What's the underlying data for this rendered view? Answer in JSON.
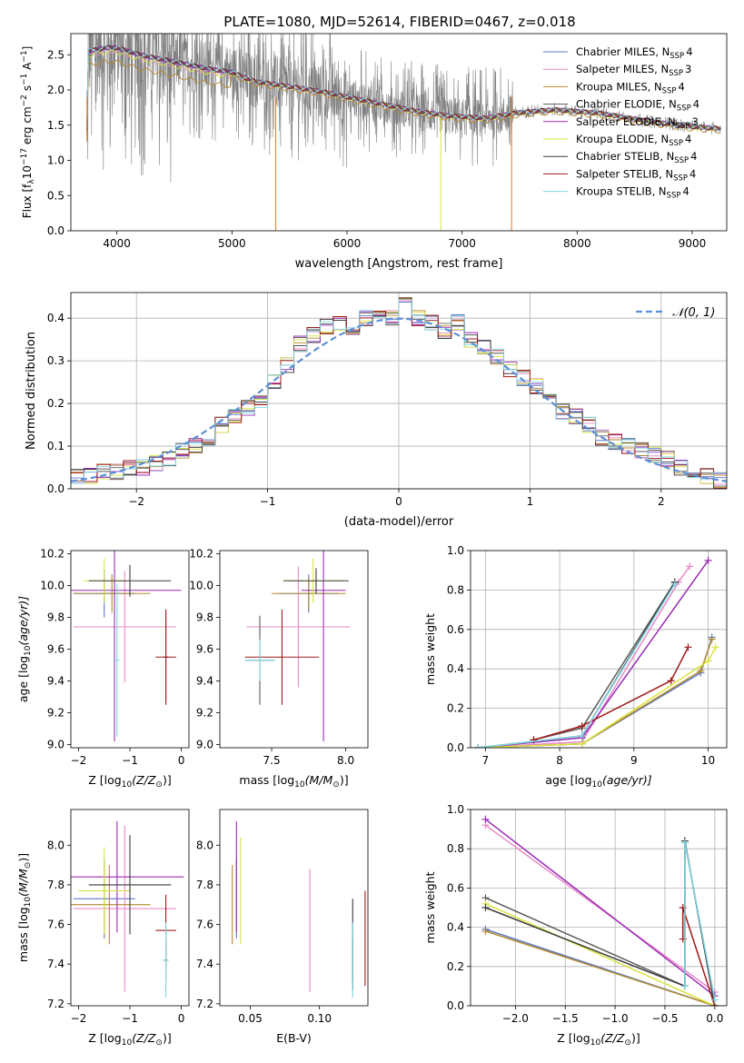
{
  "title": "PLATE=1080, MJD=52614, FIBERID=0467, z=0.018",
  "colors": {
    "Chabrier MILES": "#5b79c7",
    "Salpeter MILES": "#e98ac9",
    "Kroupa MILES": "#b48a2e",
    "Chabrier ELODIE": "#5b5b5b",
    "Salpeter ELODIE": "#9a2cb6",
    "Kroupa ELODIE": "#d9e33e",
    "Chabrier STELIB": "#3b3b3b",
    "Salpeter STELIB": "#a01818",
    "Kroupa STELIB": "#7fd7e1",
    "data": "#808080",
    "gauss": "#5b8fd6"
  },
  "chart_data": [
    {
      "id": "spectrum",
      "type": "line",
      "title": "PLATE=1080, MJD=52614, FIBERID=0467, z=0.018",
      "xlabel": "wavelength [Angstrom, rest frame]",
      "ylabel": "Flux [f",
      "ylabel_sub": "λ",
      "ylabel_rest": "10",
      "ylabel_exp1": "−17",
      "ylabel_mid": " erg cm",
      "ylabel_exp2": "−2",
      "ylabel_s": " s",
      "ylabel_exp3": "−1",
      "ylabel_a": " A",
      "ylabel_exp4": "−1",
      "ylabel_end": "]",
      "xlim": [
        3600,
        9300
      ],
      "ylim": [
        0,
        2.8
      ],
      "xticks": [
        "4000",
        "5000",
        "6000",
        "7000",
        "8000",
        "9000"
      ],
      "yticks": [
        "0.0",
        "0.5",
        "1.0",
        "1.5",
        "2.0",
        "2.5"
      ],
      "legend_position": "top-right",
      "legend": [
        {
          "name": "Chabrier MILES",
          "nssp": "4"
        },
        {
          "name": "Salpeter MILES",
          "nssp": "3"
        },
        {
          "name": "Kroupa MILES",
          "nssp": "4"
        },
        {
          "name": "Chabrier ELODIE",
          "nssp": "4"
        },
        {
          "name": "Salpeter ELODIE",
          "nssp": "3"
        },
        {
          "name": "Kroupa ELODIE",
          "nssp": "4"
        },
        {
          "name": "Chabrier STELIB",
          "nssp": "4"
        },
        {
          "name": "Salpeter STELIB",
          "nssp": "4"
        },
        {
          "name": "Kroupa STELIB",
          "nssp": "4"
        }
      ],
      "legend_label_suffix": ", N",
      "legend_label_sub": "SSP",
      "continuum": [
        [
          3750,
          2.55
        ],
        [
          3900,
          2.6
        ],
        [
          4000,
          2.6
        ],
        [
          4200,
          2.5
        ],
        [
          4500,
          2.4
        ],
        [
          4800,
          2.3
        ],
        [
          5000,
          2.25
        ],
        [
          5200,
          2.12
        ],
        [
          5500,
          2.05
        ],
        [
          5800,
          1.97
        ],
        [
          6000,
          1.9
        ],
        [
          6300,
          1.8
        ],
        [
          6600,
          1.7
        ],
        [
          6900,
          1.63
        ],
        [
          7200,
          1.6
        ],
        [
          7500,
          1.68
        ],
        [
          7800,
          1.72
        ],
        [
          8200,
          1.67
        ],
        [
          8600,
          1.56
        ],
        [
          9000,
          1.48
        ],
        [
          9250,
          1.45
        ]
      ]
    },
    {
      "id": "residuals",
      "type": "line",
      "xlabel": "(data-model)/error",
      "ylabel": "Normed distribution",
      "xlim": [
        -2.5,
        2.5
      ],
      "ylim": [
        0,
        0.46
      ],
      "xticks": [
        "−2",
        "−1",
        "0",
        "1",
        "2"
      ],
      "yticks": [
        "0.0",
        "0.1",
        "0.2",
        "0.3",
        "0.4"
      ],
      "grid": true,
      "legend_position": "top-right",
      "gauss_label": "𝒩(0, 1)",
      "bins": [
        -2.5,
        -2.4,
        -2.3,
        -2.2,
        -2.1,
        -2.0,
        -1.9,
        -1.8,
        -1.7,
        -1.6,
        -1.5,
        -1.4,
        -1.3,
        -1.2,
        -1.1,
        -1.0,
        -0.9,
        -0.8,
        -0.7,
        -0.6,
        -0.5,
        -0.4,
        -0.3,
        -0.2,
        -0.1,
        0.0,
        0.1,
        0.2,
        0.3,
        0.4,
        0.5,
        0.6,
        0.7,
        0.8,
        0.9,
        1.0,
        1.1,
        1.2,
        1.3,
        1.4,
        1.5,
        1.6,
        1.7,
        1.8,
        1.9,
        2.0,
        2.1,
        2.2,
        2.3,
        2.4,
        2.5
      ],
      "hist": [
        0.03,
        0.03,
        0.04,
        0.04,
        0.05,
        0.05,
        0.06,
        0.07,
        0.09,
        0.1,
        0.12,
        0.15,
        0.17,
        0.19,
        0.2,
        0.25,
        0.29,
        0.34,
        0.36,
        0.38,
        0.39,
        0.38,
        0.4,
        0.41,
        0.4,
        0.43,
        0.4,
        0.39,
        0.37,
        0.39,
        0.35,
        0.33,
        0.31,
        0.28,
        0.26,
        0.24,
        0.21,
        0.18,
        0.17,
        0.15,
        0.12,
        0.11,
        0.1,
        0.09,
        0.08,
        0.07,
        0.05,
        0.04,
        0.03,
        0.02
      ]
    },
    {
      "id": "age-vs-Z",
      "type": "scatter",
      "xlabel": "Z [log",
      "xlabel_sub": "10",
      "xlabel_rest": "(Z/Z",
      "xlabel_sub2": "⊙",
      "xlabel_end": ")]",
      "ylabel": "age  [log",
      "ylabel_sub": "10",
      "ylabel_rest": "(age/yr)]",
      "xlim": [
        -2.15,
        0.15
      ],
      "ylim": [
        8.98,
        10.22
      ],
      "xticks": [
        "−2",
        "−1",
        "0"
      ],
      "yticks": [
        "9.0",
        "9.2",
        "9.4",
        "9.6",
        "9.8",
        "10.0",
        "10.2"
      ],
      "errorbars": [
        {
          "model": "Chabrier MILES",
          "x": -1.5,
          "xerr": 0.6,
          "y": 9.95,
          "yerr": 0.15
        },
        {
          "model": "Salpeter MILES",
          "x": -1.1,
          "xerr": 1.0,
          "y": 9.74,
          "yerr": 0.35
        },
        {
          "model": "Kroupa MILES",
          "x": -1.35,
          "xerr": 0.75,
          "y": 9.95,
          "yerr": 0.12
        },
        {
          "model": "Chabrier ELODIE",
          "x": -0.3,
          "xerr": 0.05,
          "y": 9.55,
          "yerr": 0.28
        },
        {
          "model": "Salpeter ELODIE",
          "x": -1.3,
          "xerr": 1.3,
          "y": 9.97,
          "yerr": 0.95
        },
        {
          "model": "Kroupa ELODIE",
          "x": -1.5,
          "xerr": 0.4,
          "y": 10.03,
          "yerr": 0.14
        },
        {
          "model": "Chabrier STELIB",
          "x": -1.0,
          "xerr": 0.8,
          "y": 10.03,
          "yerr": 0.1
        },
        {
          "model": "Salpeter STELIB",
          "x": -0.3,
          "xerr": 0.2,
          "y": 9.55,
          "yerr": 0.3
        },
        {
          "model": "Kroupa STELIB",
          "x": -1.25,
          "xerr": 0.05,
          "y": 9.53,
          "yerr": 0.48
        }
      ]
    },
    {
      "id": "age-vs-mass",
      "type": "scatter",
      "xlabel": "mass [log",
      "xlabel_sub": "10",
      "xlabel_rest": "(M/M",
      "xlabel_sub2": "⊙",
      "xlabel_end": ")]",
      "xlim": [
        7.15,
        8.15
      ],
      "ylim": [
        8.98,
        10.22
      ],
      "xticks": [
        "7.5",
        "8.0"
      ],
      "yticks": [
        "9.0",
        "9.2",
        "9.4",
        "9.6",
        "9.8",
        "10.0",
        "10.2"
      ],
      "errorbars": [
        {
          "model": "Chabrier MILES",
          "x": 7.75,
          "xerr": 0.2,
          "y": 9.95,
          "yerr": 0.12
        },
        {
          "model": "Salpeter MILES",
          "x": 7.68,
          "xerr": 0.35,
          "y": 9.74,
          "yerr": 0.38
        },
        {
          "model": "Kroupa MILES",
          "x": 7.75,
          "xerr": 0.25,
          "y": 9.95,
          "yerr": 0.1
        },
        {
          "model": "Chabrier ELODIE",
          "x": 7.42,
          "xerr": 0.1,
          "y": 9.53,
          "yerr": 0.28
        },
        {
          "model": "Salpeter ELODIE",
          "x": 7.85,
          "xerr": 0.15,
          "y": 9.97,
          "yerr": 0.95
        },
        {
          "model": "Kroupa ELODIE",
          "x": 7.78,
          "xerr": 0.2,
          "y": 10.03,
          "yerr": 0.14
        },
        {
          "model": "Chabrier STELIB",
          "x": 7.8,
          "xerr": 0.22,
          "y": 10.03,
          "yerr": 0.08
        },
        {
          "model": "Salpeter STELIB",
          "x": 7.57,
          "xerr": 0.25,
          "y": 9.55,
          "yerr": 0.3
        },
        {
          "model": "Kroupa STELIB",
          "x": 7.42,
          "xerr": 0.1,
          "y": 9.53,
          "yerr": 0.13
        }
      ]
    },
    {
      "id": "massweight-vs-age",
      "type": "line",
      "xlabel": "age  [log",
      "xlabel_sub": "10",
      "xlabel_rest": "(age/yr)]",
      "ylabel": "mass weight",
      "xlim": [
        6.8,
        10.25
      ],
      "ylim": [
        0,
        1.0
      ],
      "xticks": [
        "7",
        "8",
        "9",
        "10"
      ],
      "yticks": [
        "0.0",
        "0.2",
        "0.4",
        "0.6",
        "0.8",
        "1.0"
      ],
      "grid": true,
      "series": [
        {
          "model": "Chabrier MILES",
          "x": [
            6.9,
            8.3,
            9.9,
            10.05
          ],
          "y": [
            0.0,
            0.02,
            0.38,
            0.56
          ]
        },
        {
          "model": "Salpeter MILES",
          "x": [
            6.9,
            8.3,
            9.6,
            9.75
          ],
          "y": [
            0.0,
            0.03,
            0.84,
            0.92
          ]
        },
        {
          "model": "Kroupa MILES",
          "x": [
            6.9,
            8.3,
            9.9,
            10.05
          ],
          "y": [
            0.0,
            0.02,
            0.39,
            0.55
          ]
        },
        {
          "model": "Chabrier ELODIE",
          "x": [
            7.65,
            8.3,
            9.55
          ],
          "y": [
            0.04,
            0.1,
            0.84
          ]
        },
        {
          "model": "Salpeter ELODIE",
          "x": [
            6.9,
            8.3,
            10.0
          ],
          "y": [
            0.0,
            0.05,
            0.95
          ]
        },
        {
          "model": "Kroupa ELODIE",
          "x": [
            6.9,
            8.3,
            10.0,
            10.1
          ],
          "y": [
            0.0,
            0.02,
            0.44,
            0.51
          ]
        },
        {
          "model": "Chabrier STELIB",
          "x": [
            6.9,
            8.3,
            9.55
          ],
          "y": [
            0.0,
            0.06,
            0.84
          ]
        },
        {
          "model": "Salpeter STELIB",
          "x": [
            7.65,
            8.3,
            9.5,
            9.73
          ],
          "y": [
            0.04,
            0.11,
            0.34,
            0.51
          ]
        },
        {
          "model": "Kroupa STELIB",
          "x": [
            6.9,
            8.3,
            9.55
          ],
          "y": [
            0.0,
            0.06,
            0.83
          ]
        }
      ]
    },
    {
      "id": "mass-vs-Z",
      "type": "scatter",
      "xlabel": "Z [log",
      "xlabel_sub": "10",
      "xlabel_rest": "(Z/Z",
      "xlabel_sub2": "⊙",
      "xlabel_end": ")]",
      "ylabel": "mass [log",
      "ylabel_sub": "10",
      "ylabel_rest": "(M/M",
      "ylabel_sub2": "⊙",
      "ylabel_end": ")]",
      "xlim": [
        -2.15,
        0.15
      ],
      "ylim": [
        7.19,
        8.18
      ],
      "xticks": [
        "−2",
        "−1",
        "0"
      ],
      "yticks": [
        "7.2",
        "7.4",
        "7.6",
        "7.8",
        "8.0"
      ],
      "errorbars": [
        {
          "model": "Chabrier MILES",
          "x": -1.5,
          "xerr": 0.6,
          "y": 7.73,
          "yerr": 0.2
        },
        {
          "model": "Salpeter MILES",
          "x": -1.1,
          "xerr": 1.0,
          "y": 7.68,
          "yerr": 0.42
        },
        {
          "model": "Kroupa MILES",
          "x": -1.4,
          "xerr": 0.8,
          "y": 7.7,
          "yerr": 0.2
        },
        {
          "model": "Chabrier ELODIE",
          "x": -0.3,
          "xerr": 0.05,
          "y": 7.42,
          "yerr": 0.1
        },
        {
          "model": "Salpeter ELODIE",
          "x": -1.25,
          "xerr": 1.3,
          "y": 7.84,
          "yerr": 0.28
        },
        {
          "model": "Kroupa ELODIE",
          "x": -1.5,
          "xerr": 0.5,
          "y": 7.77,
          "yerr": 0.22
        },
        {
          "model": "Chabrier STELIB",
          "x": -1.0,
          "xerr": 0.8,
          "y": 7.8,
          "yerr": 0.25
        },
        {
          "model": "Salpeter STELIB",
          "x": -0.3,
          "xerr": 0.2,
          "y": 7.57,
          "yerr": 0.18
        },
        {
          "model": "Kroupa STELIB",
          "x": -0.3,
          "xerr": 0.05,
          "y": 7.42,
          "yerr": 0.19
        }
      ]
    },
    {
      "id": "mass-vs-EBV",
      "type": "scatter",
      "xlabel": "E(B-V)",
      "xlim": [
        0.028,
        0.135
      ],
      "ylim": [
        7.19,
        8.18
      ],
      "xticks": [
        "0.05",
        "0.10"
      ],
      "yticks": [
        "7.2",
        "7.4",
        "7.6",
        "7.8",
        "8.0"
      ],
      "errorbars": [
        {
          "model": "Chabrier MILES",
          "x": 0.04,
          "xerr": 0.0,
          "y": 7.73,
          "yerr": 0.2
        },
        {
          "model": "Salpeter MILES",
          "x": 0.093,
          "xerr": 0.0,
          "y": 7.57,
          "yerr": 0.31
        },
        {
          "model": "Kroupa MILES",
          "x": 0.037,
          "xerr": 0.0,
          "y": 7.7,
          "yerr": 0.2
        },
        {
          "model": "Chabrier ELODIE",
          "x": 0.124,
          "xerr": 0.0,
          "y": 7.42,
          "yerr": 0.1
        },
        {
          "model": "Salpeter ELODIE",
          "x": 0.04,
          "xerr": 0.0,
          "y": 7.84,
          "yerr": 0.28
        },
        {
          "model": "Kroupa ELODIE",
          "x": 0.043,
          "xerr": 0.0,
          "y": 7.77,
          "yerr": 0.27
        },
        {
          "model": "Chabrier STELIB",
          "x": 0.124,
          "xerr": 0.0,
          "y": 7.5,
          "yerr": 0.23
        },
        {
          "model": "Salpeter STELIB",
          "x": 0.133,
          "xerr": 0.0,
          "y": 7.53,
          "yerr": 0.24
        },
        {
          "model": "Kroupa STELIB",
          "x": 0.124,
          "xerr": 0.0,
          "y": 7.42,
          "yerr": 0.19
        }
      ]
    },
    {
      "id": "massweight-vs-Z",
      "type": "line",
      "xlabel": "Z [log",
      "xlabel_sub": "10",
      "xlabel_rest": "(Z/Z",
      "xlabel_sub2": "⊙",
      "xlabel_end": ")]",
      "ylabel": "mass weight",
      "xlim": [
        -2.45,
        0.12
      ],
      "ylim": [
        0,
        1.0
      ],
      "xticks": [
        "−2.0",
        "−1.5",
        "−1.0",
        "−0.5",
        "0.0"
      ],
      "yticks": [
        "0.0",
        "0.2",
        "0.4",
        "0.6",
        "0.8",
        "1.0"
      ],
      "grid": true,
      "series": [
        {
          "model": "Chabrier MILES",
          "x": [
            -2.3,
            0.0
          ],
          "y": [
            0.39,
            0.0
          ]
        },
        {
          "model": "Salpeter MILES",
          "x": [
            -2.3,
            0.0
          ],
          "y": [
            0.92,
            0.07
          ]
        },
        {
          "model": "Kroupa MILES",
          "x": [
            -2.3,
            0.0
          ],
          "y": [
            0.38,
            0.0
          ]
        },
        {
          "model": "Chabrier ELODIE",
          "x": [
            -2.3,
            -0.3,
            -0.3,
            0.0
          ],
          "y": [
            0.55,
            0.1,
            0.84,
            0.0
          ]
        },
        {
          "model": "Salpeter ELODIE",
          "x": [
            -2.3,
            0.0
          ],
          "y": [
            0.95,
            0.05
          ]
        },
        {
          "model": "Kroupa ELODIE",
          "x": [
            -2.3,
            0.0
          ],
          "y": [
            0.52,
            0.0
          ]
        },
        {
          "model": "Chabrier STELIB",
          "x": [
            -2.3,
            -0.3,
            -0.3,
            0.0
          ],
          "y": [
            0.5,
            0.1,
            0.84,
            0.0
          ]
        },
        {
          "model": "Salpeter STELIB",
          "x": [
            -0.32,
            -0.32,
            0.0
          ],
          "y": [
            0.34,
            0.5,
            0.0
          ]
        },
        {
          "model": "Kroupa STELIB",
          "x": [
            -0.3,
            -0.3,
            0.0
          ],
          "y": [
            0.1,
            0.83,
            0.03
          ]
        }
      ]
    }
  ]
}
